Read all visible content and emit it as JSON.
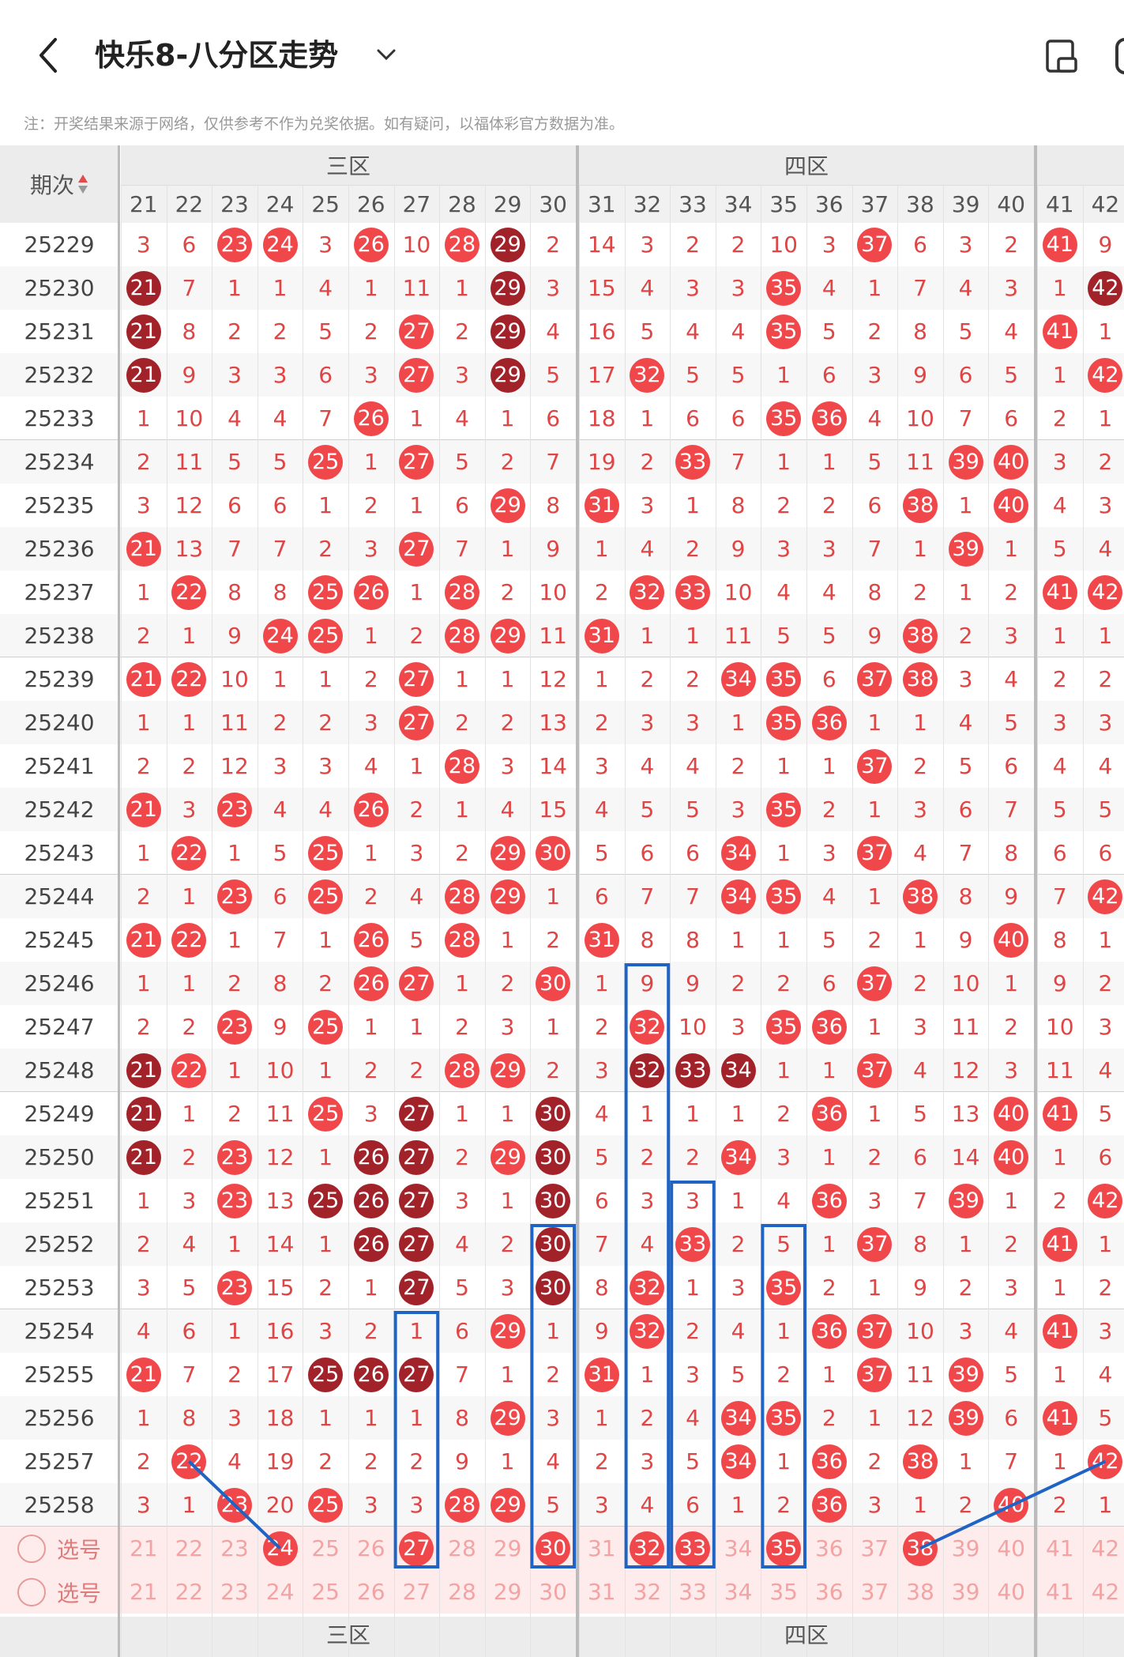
{
  "header": {
    "title": "快乐8-八分区走势",
    "back_icon": "chevron-left-icon",
    "dropdown_icon": "chevron-down-icon",
    "device_icon": "device-switch-icon"
  },
  "note": "注：开奖结果来源于网络，仅供参考不作为兑奖依据。如有疑问，以福体彩官方数据为准。",
  "table": {
    "issue_header": "期次",
    "zones": [
      {
        "label": "三区",
        "start": 21,
        "end": 30
      },
      {
        "label": "四区",
        "start": 31,
        "end": 40
      },
      {
        "label": "",
        "start": 41,
        "end": 42
      }
    ],
    "columns": [
      21,
      22,
      23,
      24,
      25,
      26,
      27,
      28,
      29,
      30,
      31,
      32,
      33,
      34,
      35,
      36,
      37,
      38,
      39,
      40,
      41,
      42
    ],
    "rows": [
      {
        "issue": "25229",
        "c": [
          "3",
          "6",
          "B23",
          "B24",
          "3",
          "B26",
          "10",
          "B28",
          "D29",
          "2",
          "14",
          "3",
          "2",
          "2",
          "10",
          "3",
          "B37",
          "6",
          "3",
          "2",
          "B41",
          "9"
        ]
      },
      {
        "issue": "25230",
        "c": [
          "D21",
          "7",
          "1",
          "1",
          "4",
          "1",
          "11",
          "1",
          "D29",
          "3",
          "15",
          "4",
          "3",
          "3",
          "B35",
          "4",
          "1",
          "7",
          "4",
          "3",
          "1",
          "D42"
        ]
      },
      {
        "issue": "25231",
        "c": [
          "D21",
          "8",
          "2",
          "2",
          "5",
          "2",
          "B27",
          "2",
          "D29",
          "4",
          "16",
          "5",
          "4",
          "4",
          "B35",
          "5",
          "2",
          "8",
          "5",
          "4",
          "B41",
          "1"
        ]
      },
      {
        "issue": "25232",
        "c": [
          "D21",
          "9",
          "3",
          "3",
          "6",
          "3",
          "B27",
          "3",
          "D29",
          "5",
          "17",
          "B32",
          "5",
          "5",
          "1",
          "6",
          "3",
          "9",
          "6",
          "5",
          "1",
          "B42"
        ]
      },
      {
        "issue": "25233",
        "c": [
          "1",
          "10",
          "4",
          "4",
          "7",
          "B26",
          "1",
          "4",
          "1",
          "6",
          "18",
          "1",
          "6",
          "6",
          "B35",
          "B36",
          "4",
          "10",
          "7",
          "6",
          "2",
          "1"
        ]
      },
      {
        "issue": "25234",
        "c": [
          "2",
          "11",
          "5",
          "5",
          "B25",
          "1",
          "B27",
          "5",
          "2",
          "7",
          "19",
          "2",
          "B33",
          "7",
          "1",
          "1",
          "5",
          "11",
          "B39",
          "B40",
          "3",
          "2"
        ]
      },
      {
        "issue": "25235",
        "c": [
          "3",
          "12",
          "6",
          "6",
          "1",
          "2",
          "1",
          "6",
          "B29",
          "8",
          "B31",
          "3",
          "1",
          "8",
          "2",
          "2",
          "6",
          "B38",
          "1",
          "B40",
          "4",
          "3"
        ]
      },
      {
        "issue": "25236",
        "c": [
          "B21",
          "13",
          "7",
          "7",
          "2",
          "3",
          "B27",
          "7",
          "1",
          "9",
          "1",
          "4",
          "2",
          "9",
          "3",
          "3",
          "7",
          "1",
          "B39",
          "1",
          "5",
          "4"
        ]
      },
      {
        "issue": "25237",
        "c": [
          "1",
          "B22",
          "8",
          "8",
          "B25",
          "B26",
          "1",
          "B28",
          "2",
          "10",
          "2",
          "B32",
          "B33",
          "10",
          "4",
          "4",
          "8",
          "2",
          "1",
          "2",
          "B41",
          "B42"
        ]
      },
      {
        "issue": "25238",
        "c": [
          "2",
          "1",
          "9",
          "B24",
          "B25",
          "1",
          "2",
          "B28",
          "B29",
          "11",
          "B31",
          "1",
          "1",
          "11",
          "5",
          "5",
          "9",
          "B38",
          "2",
          "3",
          "1",
          "1"
        ]
      },
      {
        "issue": "25239",
        "c": [
          "B21",
          "B22",
          "10",
          "1",
          "1",
          "2",
          "B27",
          "1",
          "1",
          "12",
          "1",
          "2",
          "2",
          "B34",
          "B35",
          "6",
          "B37",
          "B38",
          "3",
          "4",
          "2",
          "2"
        ]
      },
      {
        "issue": "25240",
        "c": [
          "1",
          "1",
          "11",
          "2",
          "2",
          "3",
          "B27",
          "2",
          "2",
          "13",
          "2",
          "3",
          "3",
          "1",
          "B35",
          "B36",
          "1",
          "1",
          "4",
          "5",
          "3",
          "3"
        ]
      },
      {
        "issue": "25241",
        "c": [
          "2",
          "2",
          "12",
          "3",
          "3",
          "4",
          "1",
          "B28",
          "3",
          "14",
          "3",
          "4",
          "4",
          "2",
          "1",
          "1",
          "B37",
          "2",
          "5",
          "6",
          "4",
          "4"
        ]
      },
      {
        "issue": "25242",
        "c": [
          "B21",
          "3",
          "B23",
          "4",
          "4",
          "B26",
          "2",
          "1",
          "4",
          "15",
          "4",
          "5",
          "5",
          "3",
          "B35",
          "2",
          "1",
          "3",
          "6",
          "7",
          "5",
          "5"
        ]
      },
      {
        "issue": "25243",
        "c": [
          "1",
          "B22",
          "1",
          "5",
          "B25",
          "1",
          "3",
          "2",
          "B29",
          "B30",
          "5",
          "6",
          "6",
          "B34",
          "1",
          "3",
          "B37",
          "4",
          "7",
          "8",
          "6",
          "6"
        ]
      },
      {
        "issue": "25244",
        "c": [
          "2",
          "1",
          "B23",
          "6",
          "B25",
          "2",
          "4",
          "B28",
          "B29",
          "1",
          "6",
          "7",
          "7",
          "B34",
          "B35",
          "4",
          "1",
          "B38",
          "8",
          "9",
          "7",
          "B42"
        ]
      },
      {
        "issue": "25245",
        "c": [
          "B21",
          "B22",
          "1",
          "7",
          "1",
          "B26",
          "5",
          "B28",
          "1",
          "2",
          "B31",
          "8",
          "8",
          "1",
          "1",
          "5",
          "2",
          "1",
          "9",
          "B40",
          "8",
          "1"
        ]
      },
      {
        "issue": "25246",
        "c": [
          "1",
          "1",
          "2",
          "8",
          "2",
          "B26",
          "B27",
          "1",
          "2",
          "B30",
          "1",
          "9",
          "9",
          "2",
          "2",
          "6",
          "B37",
          "2",
          "10",
          "1",
          "9",
          "2"
        ]
      },
      {
        "issue": "25247",
        "c": [
          "2",
          "2",
          "B23",
          "9",
          "B25",
          "1",
          "1",
          "2",
          "3",
          "1",
          "2",
          "B32",
          "10",
          "3",
          "B35",
          "B36",
          "1",
          "3",
          "11",
          "2",
          "10",
          "3"
        ]
      },
      {
        "issue": "25248",
        "c": [
          "D21",
          "B22",
          "1",
          "10",
          "1",
          "2",
          "2",
          "B28",
          "B29",
          "2",
          "3",
          "D32",
          "D33",
          "D34",
          "1",
          "1",
          "B37",
          "4",
          "12",
          "3",
          "11",
          "4"
        ]
      },
      {
        "issue": "25249",
        "c": [
          "D21",
          "1",
          "2",
          "11",
          "B25",
          "3",
          "D27",
          "1",
          "1",
          "D30",
          "4",
          "1",
          "1",
          "1",
          "2",
          "B36",
          "1",
          "5",
          "13",
          "B40",
          "B41",
          "5"
        ]
      },
      {
        "issue": "25250",
        "c": [
          "D21",
          "2",
          "B23",
          "12",
          "1",
          "D26",
          "D27",
          "2",
          "B29",
          "D30",
          "5",
          "2",
          "2",
          "B34",
          "3",
          "1",
          "2",
          "6",
          "14",
          "B40",
          "1",
          "6"
        ]
      },
      {
        "issue": "25251",
        "c": [
          "1",
          "3",
          "B23",
          "13",
          "D25",
          "D26",
          "D27",
          "3",
          "1",
          "D30",
          "6",
          "3",
          "3",
          "1",
          "4",
          "B36",
          "3",
          "7",
          "B39",
          "1",
          "2",
          "B42"
        ]
      },
      {
        "issue": "25252",
        "c": [
          "2",
          "4",
          "1",
          "14",
          "1",
          "D26",
          "D27",
          "4",
          "2",
          "D30",
          "7",
          "4",
          "B33",
          "2",
          "5",
          "1",
          "B37",
          "8",
          "1",
          "2",
          "B41",
          "1"
        ]
      },
      {
        "issue": "25253",
        "c": [
          "3",
          "5",
          "B23",
          "15",
          "2",
          "1",
          "D27",
          "5",
          "3",
          "D30",
          "8",
          "B32",
          "1",
          "3",
          "B35",
          "2",
          "1",
          "9",
          "2",
          "3",
          "1",
          "2"
        ]
      },
      {
        "issue": "25254",
        "c": [
          "4",
          "6",
          "1",
          "16",
          "3",
          "2",
          "1",
          "6",
          "B29",
          "1",
          "9",
          "B32",
          "2",
          "4",
          "1",
          "B36",
          "B37",
          "10",
          "3",
          "4",
          "B41",
          "3"
        ]
      },
      {
        "issue": "25255",
        "c": [
          "B21",
          "7",
          "2",
          "17",
          "D25",
          "D26",
          "D27",
          "7",
          "1",
          "2",
          "B31",
          "1",
          "3",
          "5",
          "2",
          "1",
          "B37",
          "11",
          "B39",
          "5",
          "1",
          "4"
        ]
      },
      {
        "issue": "25256",
        "c": [
          "1",
          "8",
          "3",
          "18",
          "1",
          "1",
          "1",
          "8",
          "B29",
          "3",
          "1",
          "2",
          "4",
          "B34",
          "B35",
          "2",
          "1",
          "12",
          "B39",
          "6",
          "B41",
          "5"
        ]
      },
      {
        "issue": "25257",
        "c": [
          "2",
          "B22",
          "4",
          "19",
          "2",
          "2",
          "2",
          "9",
          "1",
          "4",
          "2",
          "3",
          "5",
          "B34",
          "1",
          "B36",
          "2",
          "B38",
          "1",
          "7",
          "1",
          "B42"
        ]
      },
      {
        "issue": "25258",
        "c": [
          "3",
          "1",
          "B23",
          "20",
          "B25",
          "3",
          "3",
          "B28",
          "B29",
          "5",
          "3",
          "4",
          "6",
          "1",
          "2",
          "B36",
          "3",
          "1",
          "2",
          "B40",
          "2",
          "1"
        ]
      }
    ],
    "select_rows": [
      {
        "label": "选号",
        "picked": [
          24,
          27,
          30,
          32,
          33,
          35,
          38
        ]
      },
      {
        "label": "选号",
        "picked": []
      }
    ],
    "footer_zones": [
      "三区",
      "四区"
    ]
  },
  "colors": {
    "ball": "#f0474a",
    "ball_dark": "#a2222a",
    "box": "#1f63c4",
    "miss_text": "#e04545",
    "select_bg": "#fdeceb"
  }
}
